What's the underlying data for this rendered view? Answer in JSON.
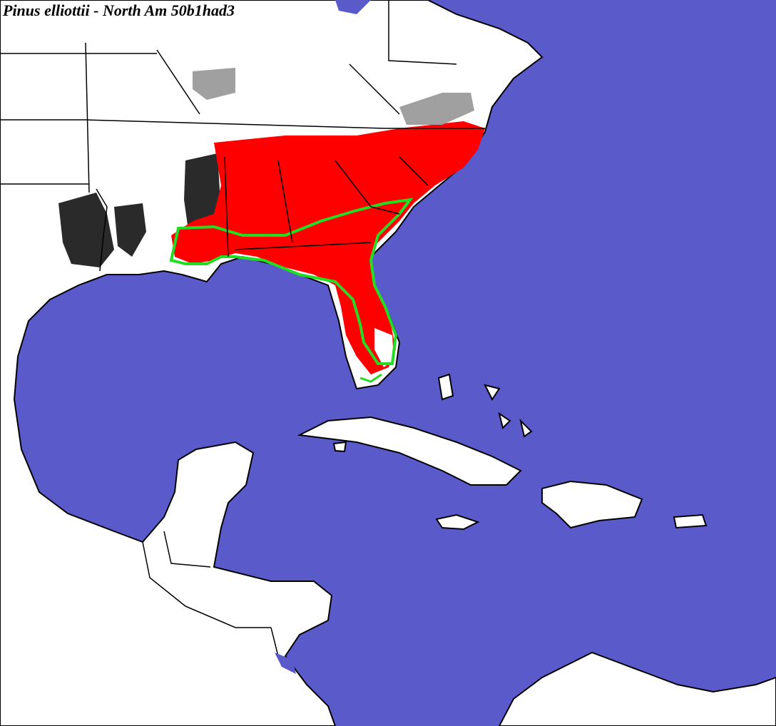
{
  "map": {
    "title": "Pinus elliottii - North Am 50b1had3",
    "colors": {
      "water": "#5a5acb",
      "land": "#ffffff",
      "border": "#000000",
      "range_high": "#ff0000",
      "range_dark": "#2a2a2a",
      "range_grey": "#a0a0a0",
      "native_outline": "#22dd22"
    }
  }
}
